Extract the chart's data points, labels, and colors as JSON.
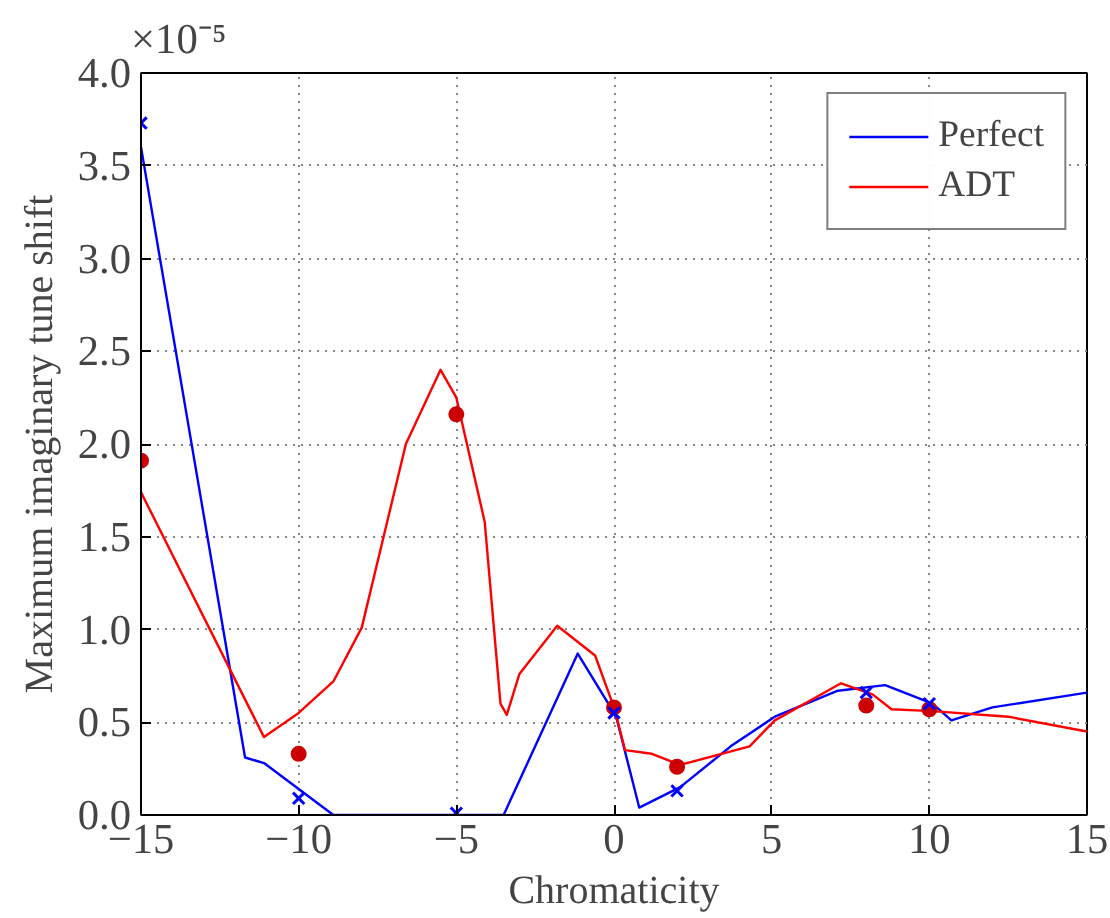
{
  "chart_data": {
    "type": "line",
    "xlabel": "Chromaticity",
    "ylabel": "Maximum imaginary tune shift",
    "annotations": [
      "×10⁻⁵"
    ],
    "xlim": [
      -15,
      15
    ],
    "xticks": [
      -15,
      -10,
      -5,
      0,
      5,
      10,
      15
    ],
    "ylim": [
      0,
      4
    ],
    "yticks": [
      {
        "value": 0,
        "label": "0.0"
      },
      {
        "value": 0.5,
        "label": "0.5"
      },
      {
        "value": 1,
        "label": "1.0"
      },
      {
        "value": 1.5,
        "label": "1.5"
      },
      {
        "value": 2,
        "label": "2.0"
      },
      {
        "value": 2.5,
        "label": "2.5"
      },
      {
        "value": 3,
        "label": "3.0"
      },
      {
        "value": 3.5,
        "label": "3.5"
      },
      {
        "value": 4,
        "label": "4.0"
      }
    ],
    "grid": true,
    "legend": "top right",
    "series": [
      {
        "name": "Perfect",
        "color": "#0000ff",
        "x": [
          -15,
          -11.7,
          -11.1,
          -10,
          -8.9,
          -3.5,
          -1.15,
          0,
          0.1,
          0.8,
          2.1,
          3.7,
          5.1,
          7.1,
          8.6,
          10.1,
          10.7,
          12,
          15
        ],
        "values": [
          3.6,
          0.31,
          0.28,
          0.14,
          0,
          0,
          0.87,
          0.55,
          0.51,
          0.04,
          0.15,
          0.37,
          0.53,
          0.67,
          0.7,
          0.6,
          0.51,
          0.58,
          0.66
        ]
      },
      {
        "name": "ADT",
        "color": "#ff0000",
        "x": [
          -15,
          -11.1,
          -10,
          -8.9,
          -8,
          -6.6,
          -5.5,
          -5,
          -4.1,
          -3.6,
          -3.4,
          -3,
          -1.8,
          -0.6,
          0,
          0.35,
          1.2,
          2.1,
          4.3,
          5.1,
          7.2,
          8.2,
          8.8,
          10.1,
          12.5,
          15
        ],
        "values": [
          1.74,
          0.42,
          0.55,
          0.72,
          1.01,
          2.0,
          2.4,
          2.25,
          1.58,
          0.6,
          0.54,
          0.76,
          1.02,
          0.86,
          0.58,
          0.35,
          0.33,
          0.27,
          0.37,
          0.51,
          0.71,
          0.65,
          0.57,
          0.56,
          0.53,
          0.45
        ]
      },
      {
        "type": "scatter",
        "marker": "circle",
        "color": "#cc0000",
        "x": [
          -15,
          -10,
          -5,
          0,
          2,
          8,
          10
        ],
        "values": [
          1.91,
          0.33,
          2.16,
          0.58,
          0.26,
          0.59,
          0.57
        ]
      },
      {
        "type": "scatter",
        "marker": "cross",
        "color": "#0000ff",
        "x": [
          -15,
          -10,
          -5,
          0,
          2,
          8,
          10
        ],
        "values": [
          3.73,
          0.09,
          0.01,
          0.55,
          0.13,
          0.66,
          0.6
        ]
      }
    ]
  }
}
